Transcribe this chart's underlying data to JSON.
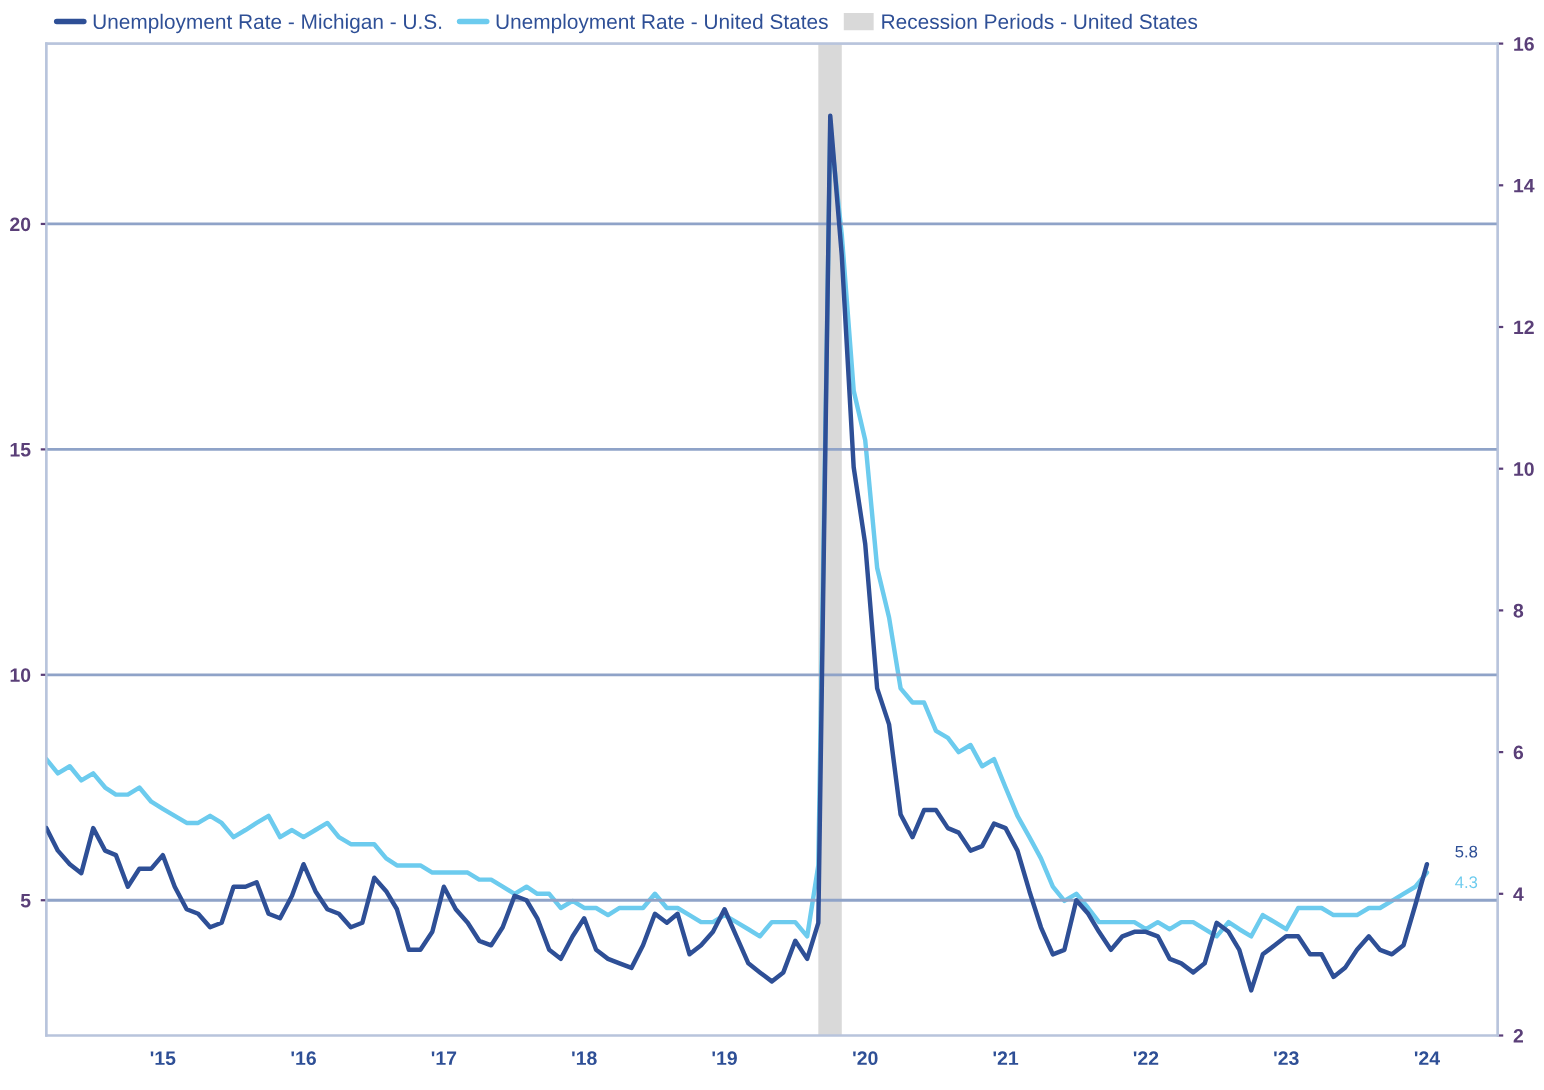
{
  "chart_data": {
    "type": "line",
    "x": [
      "2014-09",
      "2014-10",
      "2014-11",
      "2014-12",
      "2015-01",
      "2015-02",
      "2015-03",
      "2015-04",
      "2015-05",
      "2015-06",
      "2015-07",
      "2015-08",
      "2015-09",
      "2015-10",
      "2015-11",
      "2015-12",
      "2016-01",
      "2016-02",
      "2016-03",
      "2016-04",
      "2016-05",
      "2016-06",
      "2016-07",
      "2016-08",
      "2016-09",
      "2016-10",
      "2016-11",
      "2016-12",
      "2017-01",
      "2017-02",
      "2017-03",
      "2017-04",
      "2017-05",
      "2017-06",
      "2017-07",
      "2017-08",
      "2017-09",
      "2017-10",
      "2017-11",
      "2017-12",
      "2018-01",
      "2018-02",
      "2018-03",
      "2018-04",
      "2018-05",
      "2018-06",
      "2018-07",
      "2018-08",
      "2018-09",
      "2018-10",
      "2018-11",
      "2018-12",
      "2019-01",
      "2019-02",
      "2019-03",
      "2019-04",
      "2019-05",
      "2019-06",
      "2019-07",
      "2019-08",
      "2019-09",
      "2019-10",
      "2019-11",
      "2019-12",
      "2020-01",
      "2020-02",
      "2020-03",
      "2020-04",
      "2020-05",
      "2020-06",
      "2020-07",
      "2020-08",
      "2020-09",
      "2020-10",
      "2020-11",
      "2020-12",
      "2021-01",
      "2021-02",
      "2021-03",
      "2021-04",
      "2021-05",
      "2021-06",
      "2021-07",
      "2021-08",
      "2021-09",
      "2021-10",
      "2021-11",
      "2021-12",
      "2022-01",
      "2022-02",
      "2022-03",
      "2022-04",
      "2022-05",
      "2022-06",
      "2022-07",
      "2022-08",
      "2022-09",
      "2022-10",
      "2022-11",
      "2022-12",
      "2023-01",
      "2023-02",
      "2023-03",
      "2023-04",
      "2023-05",
      "2023-06",
      "2023-07",
      "2023-08",
      "2023-09",
      "2023-10",
      "2023-11",
      "2023-12",
      "2024-01",
      "2024-02",
      "2024-03",
      "2024-04",
      "2024-05",
      "2024-06",
      "2024-07"
    ],
    "series": [
      {
        "name": "Unemployment Rate - Michigan - U.S.",
        "color": "#2e4f96",
        "axis": "y",
        "values": [
          6.6,
          6.1,
          5.8,
          5.6,
          6.6,
          6.1,
          6.0,
          5.3,
          5.7,
          5.7,
          6.0,
          5.3,
          4.8,
          4.7,
          4.4,
          4.5,
          5.3,
          5.3,
          5.4,
          4.7,
          4.6,
          5.1,
          5.8,
          5.2,
          4.8,
          4.7,
          4.4,
          4.5,
          5.5,
          5.2,
          4.8,
          3.9,
          3.9,
          4.3,
          5.3,
          4.8,
          4.5,
          4.1,
          4.0,
          4.4,
          5.1,
          5.0,
          4.6,
          3.9,
          3.7,
          4.2,
          4.6,
          3.9,
          3.7,
          3.6,
          3.5,
          4.0,
          4.7,
          4.5,
          4.7,
          3.8,
          4.0,
          4.3,
          4.8,
          4.2,
          3.6,
          3.4,
          3.2,
          3.4,
          4.1,
          3.7,
          4.5,
          22.4,
          19.3,
          14.6,
          12.9,
          9.7,
          8.9,
          6.9,
          6.4,
          7.0,
          7.0,
          6.6,
          6.5,
          6.1,
          6.2,
          6.7,
          6.6,
          6.1,
          5.2,
          4.4,
          3.8,
          3.9,
          5.0,
          4.7,
          4.3,
          3.9,
          4.2,
          4.3,
          4.3,
          4.2,
          3.7,
          3.6,
          3.4,
          3.6,
          4.5,
          4.3,
          3.9,
          3.0,
          3.8,
          4.0,
          4.2,
          4.2,
          3.8,
          3.8,
          3.3,
          3.5,
          3.9,
          4.2,
          3.9,
          3.8,
          4.0,
          4.9,
          5.8
        ],
        "value_labels": [
          null,
          null,
          null,
          null,
          null,
          null,
          null,
          null,
          null,
          null,
          null,
          null,
          null,
          null,
          null,
          null,
          null,
          null,
          null,
          null,
          null,
          null,
          null,
          null,
          null,
          null,
          null,
          null,
          null,
          null,
          null,
          null,
          null,
          null,
          null,
          null,
          null,
          null,
          null,
          null,
          null,
          null,
          null,
          null,
          null,
          null,
          null,
          null,
          null,
          null,
          null,
          null,
          null,
          null,
          null,
          null,
          null,
          null,
          null,
          null,
          null,
          null,
          null,
          null,
          null,
          null,
          null,
          null,
          null,
          null,
          null,
          null,
          null,
          null,
          null,
          null,
          null,
          null,
          null,
          null,
          null,
          null,
          null,
          null,
          null,
          null,
          null,
          null,
          null,
          null,
          null,
          null,
          null,
          null,
          null,
          null,
          null,
          null,
          null,
          null,
          null,
          null,
          null,
          null,
          null,
          null,
          null,
          null,
          null,
          null,
          null,
          null,
          null,
          null,
          null,
          null,
          null,
          null,
          "5.8"
        ]
      },
      {
        "name": "Unemployment Rate - United States",
        "color": "#6ccbee",
        "axis": "y2",
        "values": [
          5.9,
          5.7,
          5.8,
          5.6,
          5.7,
          5.5,
          5.4,
          5.4,
          5.5,
          5.3,
          5.2,
          5.1,
          5.0,
          5.0,
          5.1,
          5.0,
          4.8,
          4.9,
          5.0,
          5.1,
          4.8,
          4.9,
          4.8,
          4.9,
          5.0,
          4.8,
          4.7,
          4.7,
          4.7,
          4.5,
          4.4,
          4.4,
          4.4,
          4.3,
          4.3,
          4.3,
          4.3,
          4.2,
          4.2,
          4.1,
          4.0,
          4.1,
          4.0,
          4.0,
          3.8,
          3.9,
          3.8,
          3.8,
          3.7,
          3.8,
          3.8,
          3.8,
          4.0,
          3.8,
          3.8,
          3.7,
          3.6,
          3.6,
          3.7,
          3.6,
          3.5,
          3.4,
          3.6,
          3.6,
          3.6,
          3.4,
          4.4,
          14.8,
          13.3,
          11.1,
          10.4,
          8.6,
          7.9,
          6.9,
          6.7,
          6.7,
          6.3,
          6.2,
          6.0,
          6.1,
          5.8,
          5.9,
          5.5,
          5.1,
          4.8,
          4.5,
          4.1,
          3.9,
          4.0,
          3.8,
          3.6,
          3.6,
          3.6,
          3.6,
          3.5,
          3.6,
          3.5,
          3.6,
          3.6,
          3.5,
          3.4,
          3.6,
          3.5,
          3.4,
          3.7,
          3.6,
          3.5,
          3.8,
          3.8,
          3.8,
          3.7,
          3.7,
          3.7,
          3.8,
          3.8,
          3.9,
          4.0,
          4.1,
          4.3
        ],
        "value_labels": [
          null,
          null,
          null,
          null,
          null,
          null,
          null,
          null,
          null,
          null,
          null,
          null,
          null,
          null,
          null,
          null,
          null,
          null,
          null,
          null,
          null,
          null,
          null,
          null,
          null,
          null,
          null,
          null,
          null,
          null,
          null,
          null,
          null,
          null,
          null,
          null,
          null,
          null,
          null,
          null,
          null,
          null,
          null,
          null,
          null,
          null,
          null,
          null,
          null,
          null,
          null,
          null,
          null,
          null,
          null,
          null,
          null,
          null,
          null,
          null,
          null,
          null,
          null,
          null,
          null,
          null,
          null,
          null,
          null,
          null,
          null,
          null,
          null,
          null,
          null,
          null,
          null,
          null,
          null,
          null,
          null,
          null,
          null,
          null,
          null,
          null,
          null,
          null,
          null,
          null,
          null,
          null,
          null,
          null,
          null,
          null,
          null,
          null,
          null,
          null,
          null,
          null,
          null,
          null,
          null,
          null,
          null,
          null,
          null,
          null,
          null,
          null,
          null,
          null,
          null,
          null,
          null,
          null,
          "4.3"
        ]
      }
    ],
    "bands": [
      {
        "axis": "x",
        "from": "2020-03",
        "to": "2020-05",
        "label": "Recession Periods - United States",
        "color": "#d9d9d9"
      }
    ],
    "xlim": [
      "2014-09",
      "2025-01"
    ],
    "xticks": [
      {
        "value": "2015-07",
        "label": "'15"
      },
      {
        "value": "2016-07",
        "label": "'16"
      },
      {
        "value": "2017-07",
        "label": "'17"
      },
      {
        "value": "2018-07",
        "label": "'18"
      },
      {
        "value": "2019-07",
        "label": "'19"
      },
      {
        "value": "2020-07",
        "label": "'20"
      },
      {
        "value": "2021-07",
        "label": "'21"
      },
      {
        "value": "2022-07",
        "label": "'22"
      },
      {
        "value": "2023-07",
        "label": "'23"
      },
      {
        "value": "2024-07",
        "label": "'24"
      }
    ],
    "ylim": [
      2,
      24
    ],
    "yticks": [
      5,
      10,
      15,
      20
    ],
    "y2lim": [
      2,
      16
    ],
    "y2ticks": [
      2,
      4,
      6,
      8,
      10,
      12,
      14,
      16
    ],
    "grid": "y",
    "legend": "top left",
    "marker": "none",
    "line_style": "solid"
  }
}
